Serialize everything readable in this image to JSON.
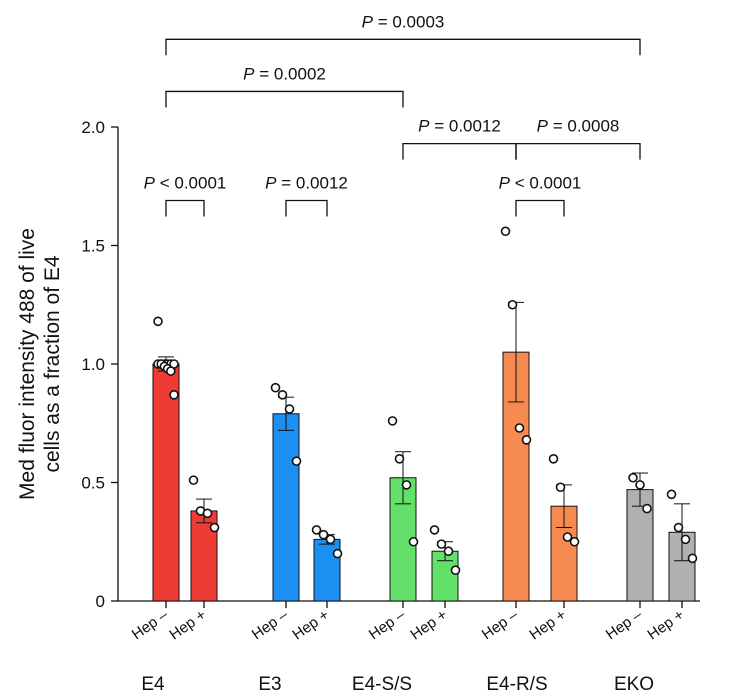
{
  "chart_data": {
    "type": "bar",
    "ylabel_lines": [
      "Med fluor intensity 488 of live",
      "cells as a fraction of E4"
    ],
    "ylim": [
      0,
      2.0
    ],
    "yticks": [
      "0",
      "0.5",
      "1.0",
      "1.5",
      "2.0"
    ],
    "yticks_values": [
      0,
      0.5,
      1.0,
      1.5,
      2.0
    ],
    "groups": [
      "E4",
      "E3",
      "E4-S/S",
      "E4-R/S",
      "EKO"
    ],
    "bars": [
      {
        "group": "E4",
        "label": "Hep –",
        "value": 1.0,
        "err": 0.03,
        "color": "#ee3b33",
        "points": [
          1.18,
          1.0,
          1.0,
          1.0,
          1.0,
          1.0,
          1.0,
          1.0,
          0.99,
          0.98,
          0.97,
          0.87
        ]
      },
      {
        "group": "E4",
        "label": "Hep +",
        "value": 0.38,
        "err": 0.05,
        "color": "#ee3b33",
        "points": [
          0.51,
          0.38,
          0.37,
          0.31
        ]
      },
      {
        "group": "E3",
        "label": "Hep –",
        "value": 0.79,
        "err": 0.07,
        "color": "#1b8ff2",
        "points": [
          0.9,
          0.87,
          0.81,
          0.59
        ]
      },
      {
        "group": "E3",
        "label": "Hep +",
        "value": 0.26,
        "err": 0.02,
        "color": "#1b8ff2",
        "points": [
          0.3,
          0.28,
          0.26,
          0.2
        ]
      },
      {
        "group": "E4-S/S",
        "label": "Hep –",
        "value": 0.52,
        "err": 0.11,
        "color": "#62e06a",
        "points": [
          0.76,
          0.6,
          0.49,
          0.25
        ]
      },
      {
        "group": "E4-S/S",
        "label": "Hep +",
        "value": 0.21,
        "err": 0.04,
        "color": "#62e06a",
        "points": [
          0.3,
          0.24,
          0.21,
          0.13
        ]
      },
      {
        "group": "E4-R/S",
        "label": "Hep –",
        "value": 1.05,
        "err": 0.21,
        "color": "#f78a50",
        "points": [
          1.56,
          1.25,
          0.73,
          0.68
        ]
      },
      {
        "group": "E4-R/S",
        "label": "Hep +",
        "value": 0.4,
        "err": 0.09,
        "color": "#f78a50",
        "points": [
          0.6,
          0.48,
          0.27,
          0.25
        ]
      },
      {
        "group": "EKO",
        "label": "Hep –",
        "value": 0.47,
        "err": 0.07,
        "color": "#b0b0b0",
        "points": [
          0.52,
          0.49,
          0.39
        ]
      },
      {
        "group": "EKO",
        "label": "Hep +",
        "value": 0.29,
        "err": 0.12,
        "color": "#b0b0b0",
        "points": [
          0.45,
          0.31,
          0.26,
          0.18
        ]
      }
    ],
    "comparisons": [
      {
        "from": 0,
        "to": 1,
        "text": "P < 0.0001",
        "y": 1.69
      },
      {
        "from": 2,
        "to": 3,
        "text": "P = 0.0012",
        "y": 1.69
      },
      {
        "from": 6,
        "to": 7,
        "text": "P < 0.0001",
        "y": 1.69
      },
      {
        "from": 4,
        "to": 6,
        "text": "P = 0.0012",
        "y": 1.93
      },
      {
        "from": 6,
        "to": 8,
        "text": "P = 0.0008",
        "y": 1.93
      },
      {
        "from": 0,
        "to": 4,
        "text": "P = 0.0002",
        "y": 2.15
      },
      {
        "from": 0,
        "to": 8,
        "text": "P = 0.0003",
        "y": 2.37
      }
    ]
  }
}
